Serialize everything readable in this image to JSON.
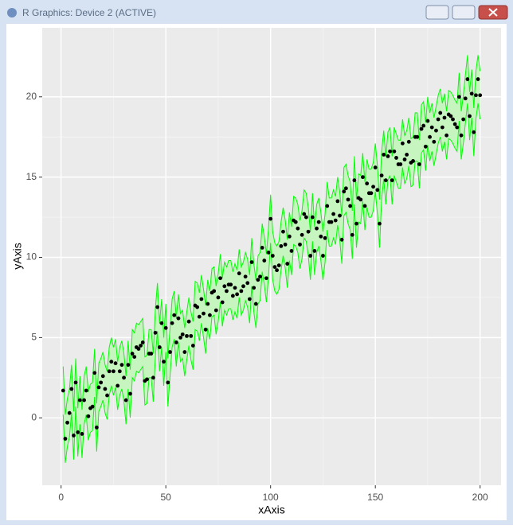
{
  "window": {
    "title": "R Graphics: Device 2 (ACTIVE)"
  },
  "chart_data": {
    "type": "scatter",
    "x_label": "xAxis",
    "y_label": "yAxis",
    "x": [
      1,
      2,
      3,
      4,
      5,
      6,
      7,
      8,
      9,
      10,
      11,
      12,
      13,
      14,
      15,
      16,
      17,
      18,
      19,
      20,
      21,
      22,
      23,
      24,
      25,
      26,
      27,
      28,
      29,
      30,
      31,
      32,
      33,
      34,
      35,
      36,
      37,
      38,
      39,
      40,
      41,
      42,
      43,
      44,
      45,
      46,
      47,
      48,
      49,
      50,
      51,
      52,
      53,
      54,
      55,
      56,
      57,
      58,
      59,
      60,
      61,
      62,
      63,
      64,
      65,
      66,
      67,
      68,
      69,
      70,
      71,
      72,
      73,
      74,
      75,
      76,
      77,
      78,
      79,
      80,
      81,
      82,
      83,
      84,
      85,
      86,
      87,
      88,
      89,
      90,
      91,
      92,
      93,
      94,
      95,
      96,
      97,
      98,
      99,
      100,
      101,
      102,
      103,
      104,
      105,
      106,
      107,
      108,
      109,
      110,
      111,
      112,
      113,
      114,
      115,
      116,
      117,
      118,
      119,
      120,
      121,
      122,
      123,
      124,
      125,
      126,
      127,
      128,
      129,
      130,
      131,
      132,
      133,
      134,
      135,
      136,
      137,
      138,
      139,
      140,
      141,
      142,
      143,
      144,
      145,
      146,
      147,
      148,
      149,
      150,
      151,
      152,
      153,
      154,
      155,
      156,
      157,
      158,
      159,
      160,
      161,
      162,
      163,
      164,
      165,
      166,
      167,
      168,
      169,
      170,
      171,
      172,
      173,
      174,
      175,
      176,
      177,
      178,
      179,
      180,
      181,
      182,
      183,
      184,
      185,
      186,
      187,
      188,
      189,
      190,
      191,
      192,
      193,
      194,
      195,
      196,
      197,
      198,
      199,
      200
    ],
    "y": [
      1.7,
      -1.3,
      -0.3,
      0.3,
      1.8,
      -1.1,
      2.2,
      -0.9,
      1.1,
      -1.0,
      1.1,
      1.7,
      0.1,
      0.6,
      0.7,
      2.8,
      -0.6,
      1.9,
      2.2,
      2.6,
      1.8,
      1.4,
      2.9,
      3.5,
      2.9,
      3.4,
      2.0,
      2.9,
      3.3,
      2.5,
      1.1,
      3.3,
      1.5,
      4.0,
      3.8,
      4.4,
      4.3,
      4.5,
      4.7,
      2.3,
      2.4,
      4.0,
      4.0,
      2.5,
      5.3,
      6.9,
      4.4,
      5.9,
      3.5,
      5.6,
      2.2,
      4.1,
      5.9,
      6.4,
      4.7,
      6.2,
      5.0,
      5.2,
      4.1,
      5.1,
      6.0,
      5.1,
      4.5,
      7.0,
      6.9,
      6.3,
      7.4,
      6.5,
      5.5,
      7.1,
      6.4,
      7.8,
      7.9,
      6.7,
      7.5,
      8.7,
      7.2,
      8.2,
      7.9,
      8.3,
      8.3,
      7.6,
      8.1,
      7.7,
      9.0,
      7.9,
      8.2,
      8.8,
      8.4,
      7.4,
      9.7,
      8.1,
      7.1,
      8.6,
      8.8,
      10.6,
      9.8,
      8.7,
      10.3,
      12.4,
      10.1,
      9.4,
      9.2,
      9.5,
      10.7,
      11.6,
      10.8,
      9.6,
      11.3,
      10.4,
      12.3,
      12.2,
      11.8,
      10.8,
      11.4,
      12.7,
      12.5,
      11.6,
      10.1,
      12.5,
      10.4,
      11.8,
      12.2,
      11.3,
      10.1,
      11.2,
      13.2,
      12.2,
      12.2,
      12.7,
      12.3,
      13.5,
      12.6,
      11.1,
      14.1,
      14.3,
      13.6,
      13.2,
      11.4,
      14.8,
      12.1,
      13.7,
      13.6,
      15.0,
      13.2,
      14.6,
      14.0,
      14.0,
      14.4,
      15.6,
      14.2,
      12.1,
      15.1,
      16.4,
      14.8,
      16.3,
      16.6,
      14.8,
      16.6,
      16.2,
      15.8,
      15.8,
      17.1,
      16.1,
      16.4,
      17.2,
      15.9,
      16.0,
      17.5,
      17.5,
      15.8,
      18.0,
      18.2,
      16.9,
      18.5,
      17.5,
      18.1,
      17.2,
      17.9,
      18.6,
      19.0,
      18.1,
      18.7,
      17.6,
      18.9,
      18.8,
      18.6,
      18.3,
      18.1,
      20.0,
      17.6,
      18.6,
      19.9,
      21.1,
      18.8,
      20.2,
      17.8,
      20.1,
      21.1,
      20.1
    ],
    "point_color": "#000000",
    "ribbon": {
      "line_color": "#00ff00",
      "fill_color": "#c6f5c0",
      "upper": [
        3.2,
        0.2,
        1.2,
        1.8,
        3.3,
        0.4,
        3.7,
        0.6,
        2.6,
        0.5,
        2.6,
        3.2,
        1.6,
        2.1,
        2.2,
        4.3,
        0.9,
        3.4,
        3.7,
        4.1,
        3.3,
        2.9,
        4.4,
        5.0,
        4.4,
        4.9,
        3.5,
        4.4,
        4.8,
        4.0,
        2.6,
        4.8,
        3.0,
        5.5,
        5.3,
        5.9,
        5.8,
        6.0,
        6.2,
        3.8,
        3.9,
        5.5,
        5.5,
        4.0,
        6.8,
        8.4,
        5.9,
        7.4,
        5.0,
        7.1,
        3.7,
        5.6,
        7.4,
        7.9,
        6.2,
        7.7,
        6.5,
        6.7,
        5.6,
        6.6,
        7.5,
        6.6,
        6.0,
        8.5,
        8.4,
        7.8,
        8.9,
        8.0,
        7.0,
        8.6,
        7.9,
        9.3,
        9.4,
        8.2,
        9.0,
        10.2,
        8.7,
        9.7,
        9.4,
        9.8,
        9.8,
        9.1,
        9.6,
        9.2,
        10.5,
        9.4,
        9.7,
        10.3,
        9.9,
        8.9,
        11.2,
        9.6,
        8.6,
        10.1,
        10.3,
        12.1,
        11.3,
        10.2,
        11.8,
        13.9,
        11.6,
        10.9,
        10.7,
        11.0,
        12.2,
        13.1,
        12.3,
        11.1,
        12.8,
        11.9,
        13.8,
        13.7,
        13.3,
        12.3,
        12.9,
        14.2,
        14.0,
        13.1,
        11.6,
        14.0,
        11.9,
        13.3,
        13.7,
        12.8,
        11.6,
        12.7,
        14.7,
        13.7,
        13.7,
        14.2,
        13.8,
        15.0,
        14.1,
        12.6,
        15.6,
        15.8,
        15.1,
        14.7,
        12.9,
        16.3,
        13.6,
        15.2,
        15.1,
        16.5,
        14.7,
        16.1,
        15.5,
        15.5,
        15.9,
        17.1,
        15.7,
        13.6,
        16.6,
        17.9,
        16.3,
        17.8,
        18.1,
        16.3,
        18.1,
        17.7,
        17.3,
        17.3,
        18.6,
        17.6,
        17.9,
        18.7,
        17.4,
        17.5,
        19.0,
        19.0,
        17.3,
        19.5,
        19.7,
        18.4,
        20.0,
        19.0,
        19.6,
        18.7,
        19.4,
        20.1,
        20.5,
        19.6,
        20.2,
        19.1,
        20.4,
        20.3,
        20.1,
        19.8,
        19.6,
        21.5,
        19.1,
        20.1,
        21.4,
        22.6,
        20.3,
        21.7,
        19.3,
        21.6,
        22.6,
        21.6
      ],
      "lower": [
        0.2,
        -2.8,
        -1.8,
        -1.2,
        0.3,
        -2.6,
        0.7,
        -2.4,
        -0.4,
        -2.5,
        -0.4,
        0.2,
        -1.4,
        -0.9,
        -0.8,
        1.3,
        -2.1,
        0.4,
        0.7,
        1.1,
        0.3,
        -0.1,
        1.4,
        2.0,
        1.4,
        1.9,
        0.5,
        1.4,
        1.8,
        1.0,
        -0.4,
        1.8,
        0.0,
        2.5,
        2.3,
        2.9,
        2.8,
        3.0,
        3.2,
        0.8,
        0.9,
        2.5,
        2.5,
        1.0,
        3.8,
        5.4,
        2.9,
        4.4,
        2.0,
        4.1,
        0.7,
        2.6,
        4.4,
        4.9,
        3.2,
        4.7,
        3.5,
        3.7,
        2.6,
        3.6,
        4.5,
        3.6,
        3.0,
        5.5,
        5.4,
        4.8,
        5.9,
        5.0,
        4.0,
        5.6,
        4.9,
        6.3,
        6.4,
        5.2,
        6.0,
        7.2,
        5.7,
        6.7,
        6.4,
        6.8,
        6.8,
        6.1,
        6.6,
        6.2,
        7.5,
        6.4,
        6.7,
        7.3,
        6.9,
        5.9,
        8.2,
        6.6,
        5.6,
        7.1,
        7.3,
        9.1,
        8.3,
        7.2,
        8.8,
        10.9,
        8.6,
        7.9,
        7.7,
        8.0,
        9.2,
        10.1,
        9.3,
        8.1,
        9.8,
        8.9,
        10.8,
        10.7,
        10.3,
        9.3,
        9.9,
        11.2,
        11.0,
        10.1,
        8.6,
        11.0,
        8.9,
        10.3,
        10.7,
        9.8,
        8.6,
        9.7,
        11.7,
        10.7,
        10.7,
        11.2,
        10.8,
        12.0,
        11.1,
        9.6,
        12.6,
        12.8,
        12.1,
        11.7,
        9.9,
        13.3,
        10.6,
        12.2,
        12.1,
        13.5,
        11.7,
        13.1,
        12.5,
        12.5,
        12.9,
        14.1,
        12.7,
        10.6,
        13.6,
        14.9,
        13.3,
        14.8,
        15.1,
        13.3,
        15.1,
        14.7,
        14.3,
        14.3,
        15.6,
        14.6,
        14.9,
        15.7,
        14.4,
        14.5,
        16.0,
        16.0,
        14.3,
        16.5,
        16.7,
        15.4,
        17.0,
        16.0,
        16.6,
        15.7,
        16.4,
        17.1,
        17.5,
        16.6,
        17.2,
        16.1,
        17.4,
        17.3,
        17.1,
        16.8,
        16.6,
        18.5,
        16.1,
        17.1,
        18.4,
        19.6,
        17.3,
        18.7,
        16.3,
        18.6,
        19.6,
        18.6
      ]
    },
    "xlim": [
      -9,
      210
    ],
    "ylim": [
      -4.2,
      24.3
    ],
    "xticks": [
      0,
      50,
      100,
      150,
      200
    ],
    "yticks": [
      0,
      5,
      10,
      15,
      20
    ],
    "grid": true
  }
}
